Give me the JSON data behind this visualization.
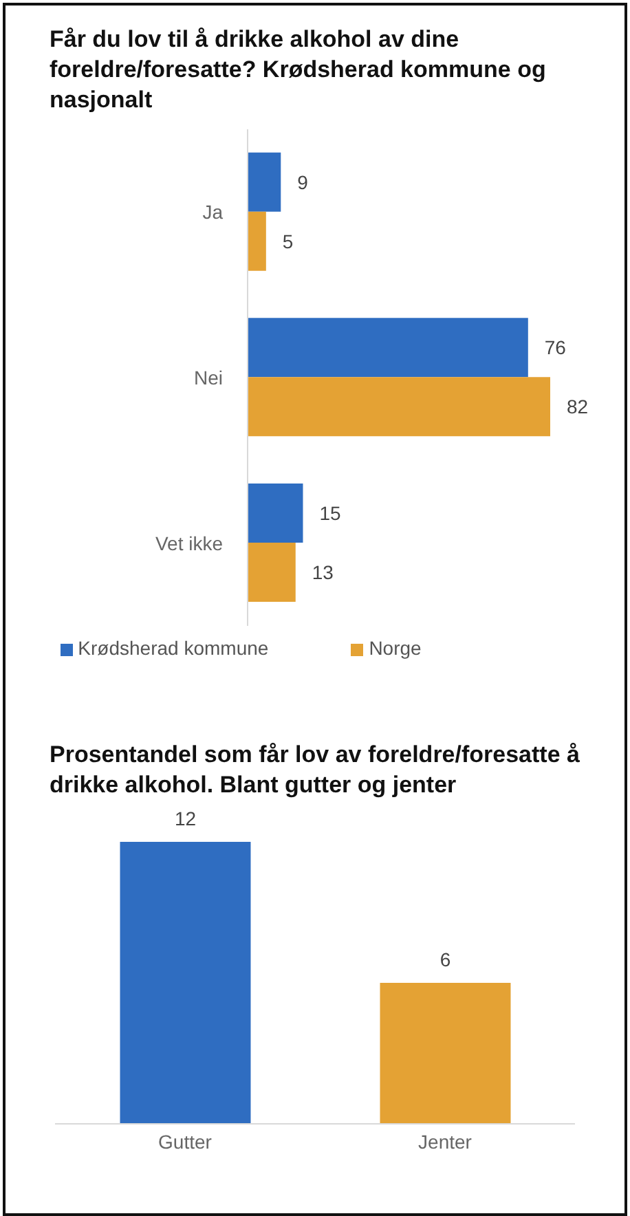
{
  "chart_data": [
    {
      "type": "bar",
      "orientation": "horizontal",
      "title": "Får du lov til å drikke alkohol av dine foreldre/foresatte? Krødsherad kommune og nasjonalt",
      "categories": [
        "Ja",
        "Nei",
        "Vet ikke"
      ],
      "series": [
        {
          "name": "Krødsherad kommune",
          "color": "#2f6dc1",
          "values": [
            9,
            76,
            15
          ]
        },
        {
          "name": "Norge",
          "color": "#e4a234",
          "values": [
            5,
            82,
            13
          ]
        }
      ],
      "data_labels": true,
      "legend": "bottom",
      "grid": false
    },
    {
      "type": "bar",
      "title": "Prosentandel som får lov av foreldre/foresatte å drikke alkohol. Blant gutter og jenter",
      "categories": [
        "Gutter",
        "Jenter"
      ],
      "values": [
        12,
        6
      ],
      "colors": [
        "#2f6dc1",
        "#e4a234"
      ],
      "data_labels": true,
      "grid": false
    }
  ]
}
